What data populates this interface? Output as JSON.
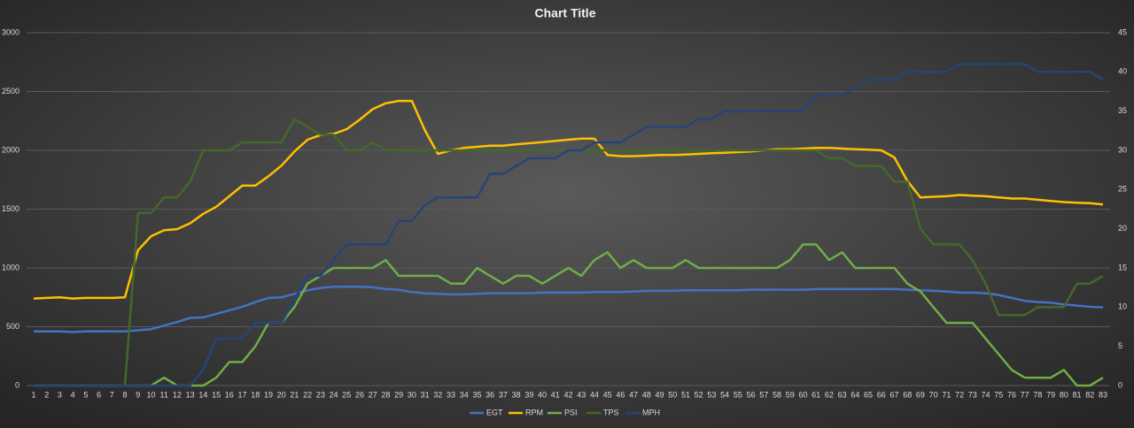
{
  "chart_data": {
    "type": "line",
    "title": "Chart Title",
    "categories": [
      1,
      2,
      3,
      4,
      5,
      6,
      7,
      8,
      9,
      10,
      11,
      12,
      13,
      14,
      15,
      16,
      17,
      18,
      19,
      20,
      21,
      22,
      23,
      24,
      25,
      26,
      27,
      28,
      29,
      30,
      31,
      32,
      33,
      34,
      35,
      36,
      37,
      38,
      39,
      40,
      41,
      42,
      43,
      44,
      45,
      46,
      47,
      48,
      49,
      50,
      51,
      52,
      53,
      54,
      55,
      56,
      57,
      58,
      59,
      60,
      61,
      62,
      63,
      64,
      65,
      66,
      67,
      68,
      69,
      70,
      71,
      72,
      73,
      74,
      75,
      76,
      77,
      78,
      79,
      80,
      81,
      82,
      83
    ],
    "series": [
      {
        "name": "EGT",
        "color": "#4472c4",
        "values": [
          460,
          460,
          460,
          455,
          460,
          462,
          460,
          460,
          470,
          480,
          510,
          540,
          575,
          580,
          610,
          640,
          670,
          710,
          745,
          750,
          780,
          810,
          830,
          840,
          840,
          840,
          835,
          820,
          815,
          795,
          785,
          780,
          775,
          775,
          780,
          785,
          785,
          785,
          785,
          790,
          790,
          790,
          790,
          795,
          795,
          795,
          800,
          805,
          805,
          805,
          810,
          810,
          810,
          810,
          810,
          815,
          815,
          815,
          815,
          815,
          820,
          820,
          820,
          820,
          820,
          820,
          820,
          815,
          810,
          805,
          800,
          790,
          790,
          785,
          770,
          745,
          720,
          710,
          705,
          690,
          680,
          670,
          665
        ]
      },
      {
        "name": "RPM",
        "color": "#ffc000",
        "values": [
          740,
          745,
          750,
          740,
          745,
          745,
          745,
          750,
          1150,
          1270,
          1320,
          1330,
          1380,
          1460,
          1520,
          1610,
          1700,
          1700,
          1780,
          1870,
          1990,
          2090,
          2130,
          2140,
          2180,
          2260,
          2350,
          2400,
          2420,
          2420,
          2170,
          1970,
          2000,
          2020,
          2030,
          2040,
          2040,
          2050,
          2060,
          2070,
          2080,
          2090,
          2100,
          2100,
          1960,
          1950,
          1950,
          1955,
          1960,
          1960,
          1965,
          1970,
          1975,
          1980,
          1985,
          1990,
          2000,
          2010,
          2010,
          2015,
          2020,
          2020,
          2015,
          2010,
          2005,
          2000,
          1940,
          1740,
          1600,
          1605,
          1610,
          1620,
          1615,
          1610,
          1600,
          1590,
          1590,
          1580,
          1570,
          1560,
          1555,
          1550,
          1540
        ]
      },
      {
        "name": "PSI",
        "color": "#70ad47",
        "axis": "y2",
        "values": [
          0,
          0,
          0,
          0,
          0,
          0,
          0,
          0,
          0,
          0,
          1,
          0,
          0,
          0,
          1,
          3,
          3,
          5,
          8,
          8,
          10,
          13,
          14,
          15,
          15,
          15,
          15,
          16,
          14,
          14,
          14,
          14,
          13,
          13,
          15,
          14,
          13,
          14,
          14,
          13,
          14,
          15,
          14,
          16,
          17,
          15,
          16,
          15,
          15,
          15,
          16,
          15,
          15,
          15,
          15,
          15,
          15,
          15,
          16,
          18,
          18,
          16,
          17,
          15,
          15,
          15,
          15,
          13,
          12,
          10,
          8,
          8,
          8,
          6,
          4,
          2,
          1,
          1,
          1,
          2,
          0,
          0,
          1
        ]
      },
      {
        "name": "TPS",
        "color": "#43682b",
        "axis": "y2",
        "values": [
          0,
          0,
          0,
          0,
          0,
          0,
          0,
          0,
          22,
          22,
          24,
          24,
          26,
          30,
          30,
          30,
          31,
          31,
          31,
          31,
          34,
          33,
          32,
          32,
          30,
          30,
          31,
          30,
          30,
          30,
          30,
          30,
          30,
          30,
          30,
          30,
          30,
          30,
          30,
          30,
          30,
          30,
          30,
          30,
          30,
          30,
          30,
          30,
          30,
          30,
          30,
          30,
          30,
          30,
          30,
          30,
          30,
          30,
          30,
          30,
          30,
          29,
          29,
          28,
          28,
          28,
          26,
          26,
          20,
          18,
          18,
          18,
          16,
          13,
          9,
          9,
          9,
          10,
          10,
          10,
          13,
          13,
          14
        ]
      },
      {
        "name": "MPH",
        "color": "#264478",
        "axis": "y2",
        "values": [
          0,
          0,
          0,
          0,
          0,
          0,
          0,
          0,
          0,
          0,
          0,
          0,
          0,
          2,
          6,
          6,
          6,
          8,
          8,
          8,
          11,
          14,
          14,
          16,
          18,
          18,
          18,
          18,
          21,
          21,
          23,
          24,
          24,
          24,
          24,
          27,
          27,
          28,
          29,
          29,
          29,
          30,
          30,
          31,
          31,
          31,
          32,
          33,
          33,
          33,
          33,
          34,
          34,
          35,
          35,
          35,
          35,
          35,
          35,
          35,
          37,
          37,
          37,
          38,
          39,
          39,
          39,
          40,
          40,
          40,
          40,
          41,
          41,
          41,
          41,
          41,
          41,
          40,
          40,
          40,
          40,
          40,
          39
        ]
      }
    ],
    "ylim": [
      0,
      3000
    ],
    "yticks": [
      0,
      500,
      1000,
      1500,
      2000,
      2500,
      3000
    ],
    "y2lim": [
      0,
      45
    ],
    "y2ticks": [
      0,
      5,
      10,
      15,
      20,
      25,
      30,
      35,
      40,
      45
    ],
    "grid": true,
    "legend": "bottom"
  }
}
